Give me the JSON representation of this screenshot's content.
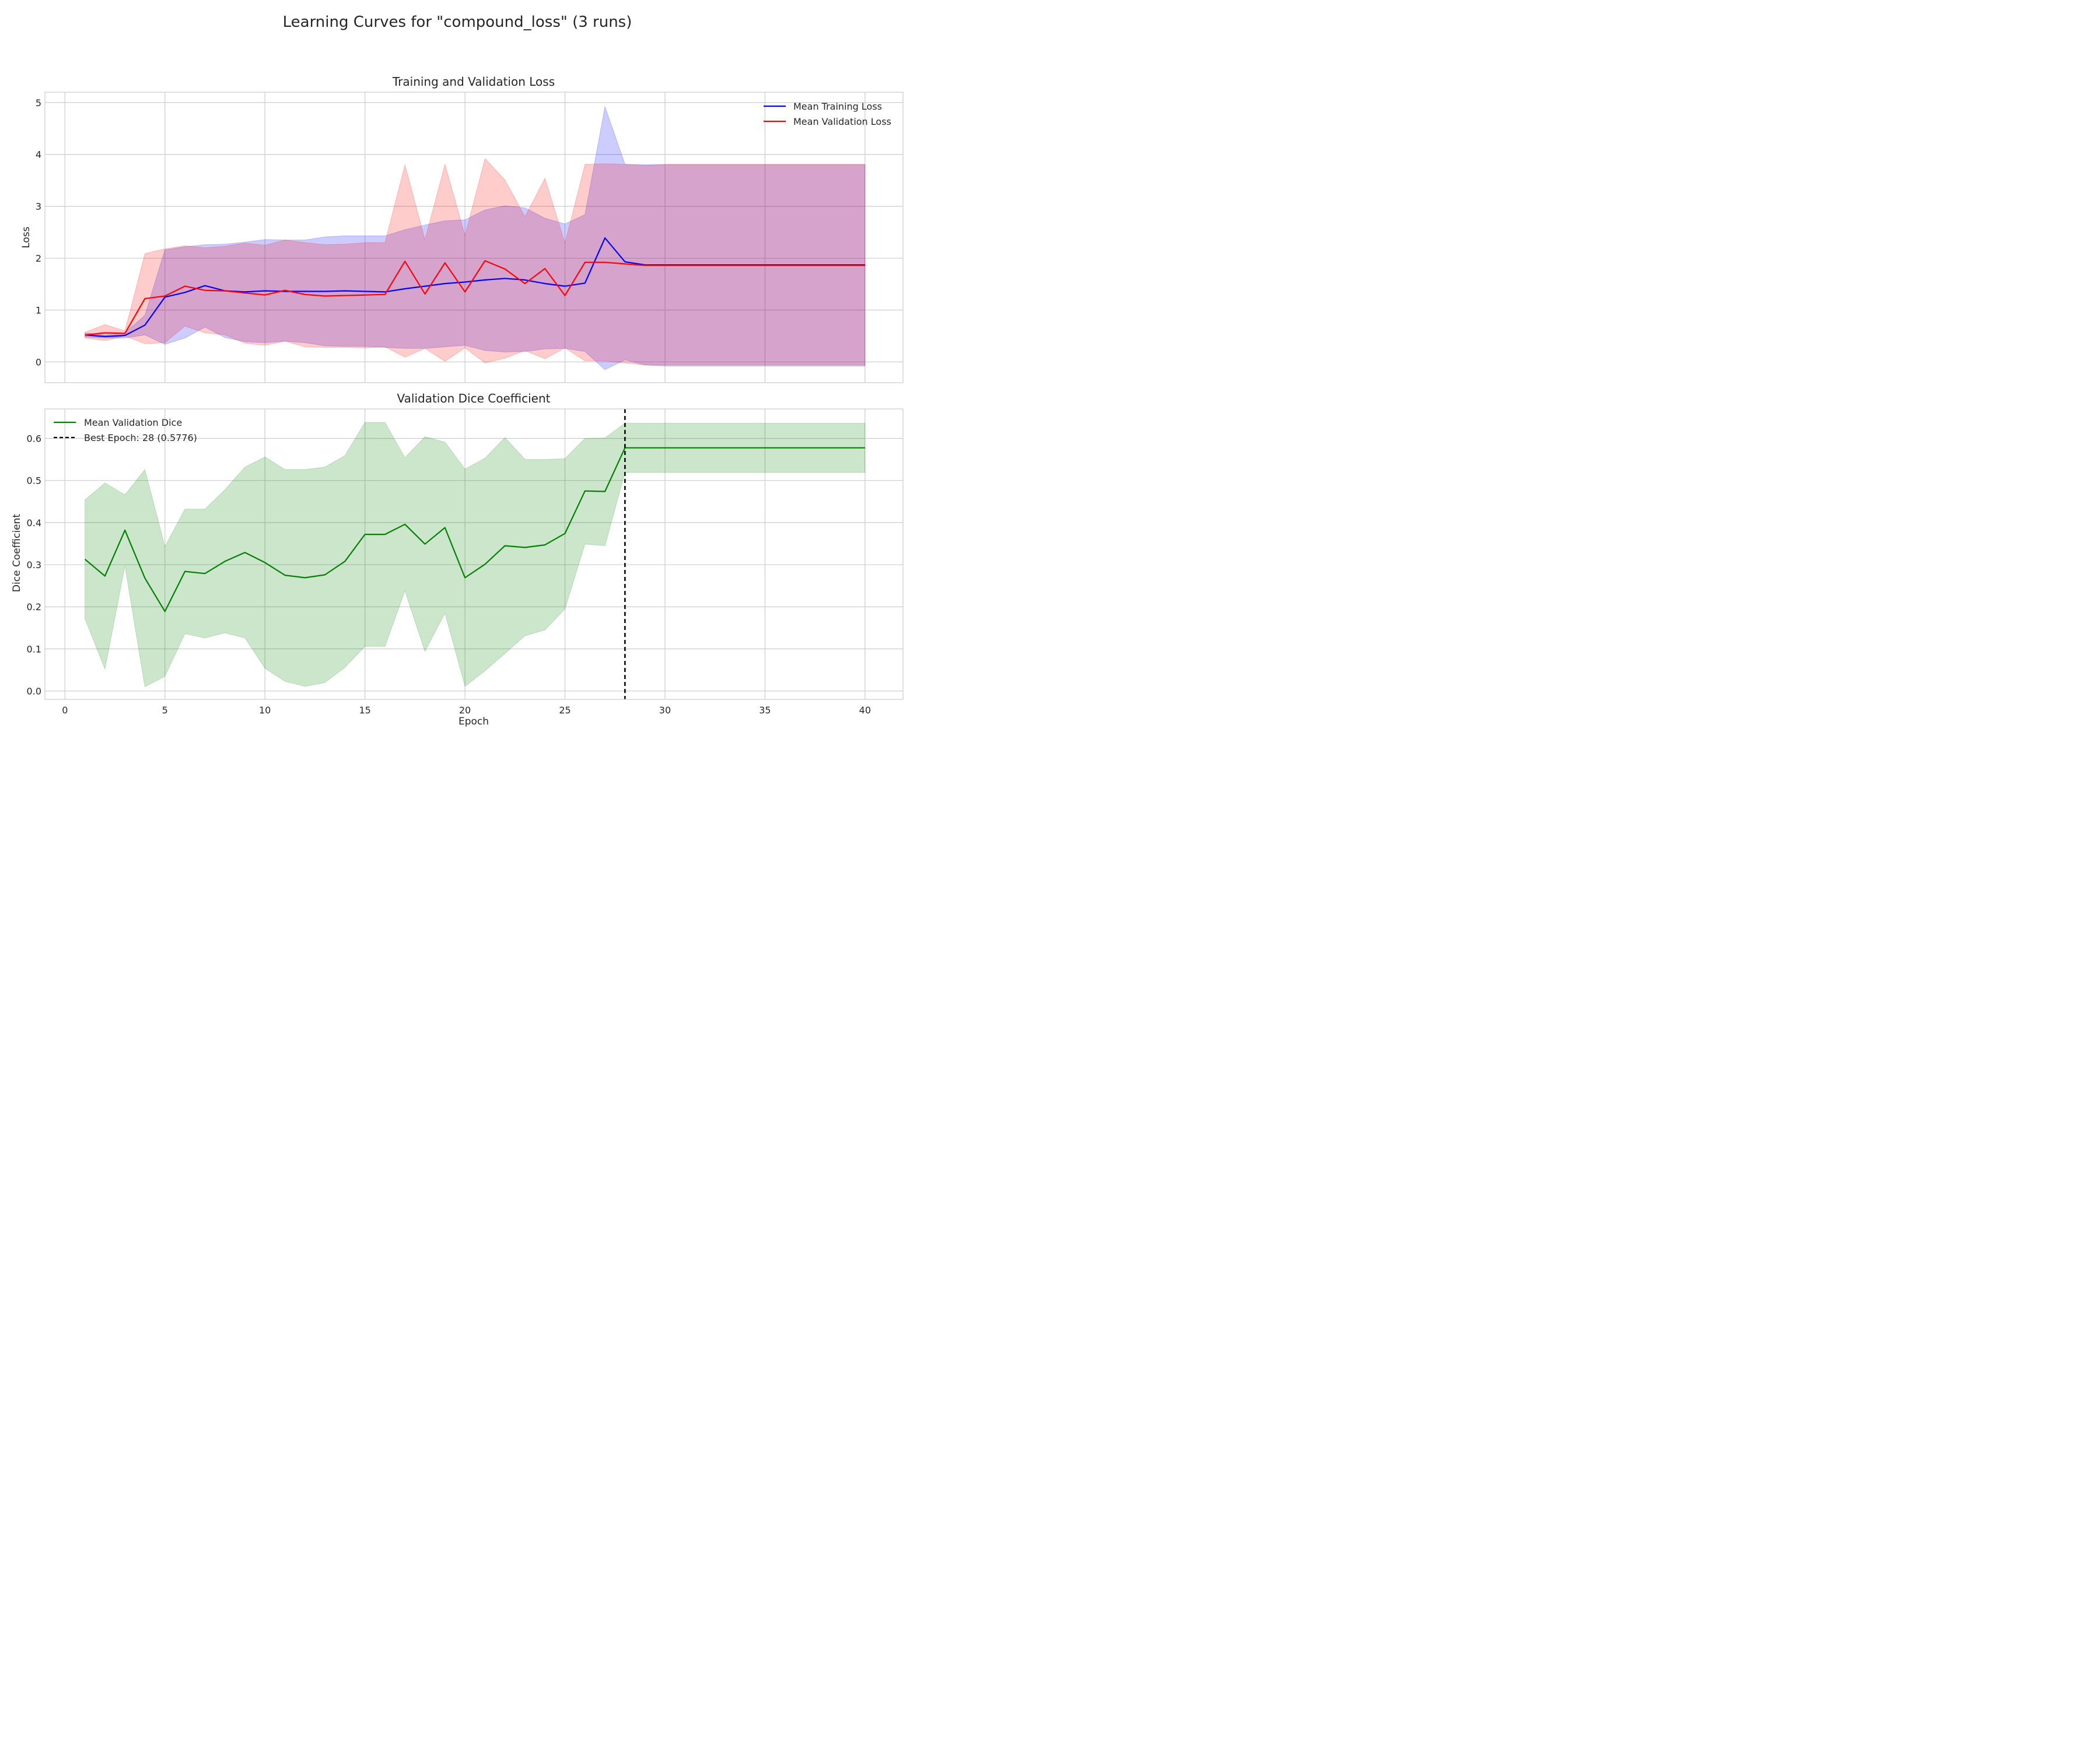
{
  "figure": {
    "suptitle": "Learning Curves for \"compound_loss\" (3 runs)"
  },
  "chart_data": [
    {
      "type": "line",
      "title": "Training and Validation Loss",
      "xlabel": "",
      "ylabel": "Loss",
      "xlim": [
        -1,
        41.9
      ],
      "ylim": [
        -0.4,
        5.2
      ],
      "xticks": [
        0,
        5,
        10,
        15,
        20,
        25,
        30,
        35,
        40
      ],
      "xtick_labels_shown": false,
      "yticks": [
        0,
        1,
        2,
        3,
        4,
        5
      ],
      "grid": true,
      "legend_position": "upper right",
      "x": [
        1,
        2,
        3,
        4,
        5,
        6,
        7,
        8,
        9,
        10,
        11,
        12,
        13,
        14,
        15,
        16,
        17,
        18,
        19,
        20,
        21,
        22,
        23,
        24,
        25,
        26,
        27,
        28,
        29,
        30,
        31,
        32,
        33,
        34,
        35,
        36,
        37,
        38,
        39,
        40
      ],
      "series": [
        {
          "name": "Mean Training Loss",
          "color": "#0000ff",
          "band_color": "#0000ff",
          "values": [
            0.52,
            0.49,
            0.51,
            0.71,
            1.25,
            1.34,
            1.47,
            1.37,
            1.35,
            1.37,
            1.36,
            1.36,
            1.36,
            1.37,
            1.36,
            1.35,
            1.41,
            1.46,
            1.51,
            1.54,
            1.58,
            1.61,
            1.58,
            1.51,
            1.46,
            1.52,
            2.39,
            1.93,
            1.87,
            1.87,
            1.87,
            1.87,
            1.87,
            1.87,
            1.87,
            1.87,
            1.87,
            1.87,
            1.87,
            1.87
          ],
          "band_lower": [
            0.48,
            0.46,
            0.46,
            0.52,
            0.34,
            0.46,
            0.67,
            0.47,
            0.39,
            0.37,
            0.4,
            0.37,
            0.31,
            0.3,
            0.3,
            0.28,
            0.26,
            0.26,
            0.29,
            0.32,
            0.22,
            0.19,
            0.2,
            0.25,
            0.26,
            0.2,
            -0.15,
            0.04,
            -0.06,
            -0.08,
            -0.08,
            -0.08,
            -0.08,
            -0.08,
            -0.08,
            -0.08,
            -0.08,
            -0.08,
            -0.08,
            -0.08
          ],
          "band_upper": [
            0.56,
            0.52,
            0.56,
            0.9,
            2.16,
            2.22,
            2.26,
            2.27,
            2.31,
            2.36,
            2.35,
            2.35,
            2.41,
            2.43,
            2.43,
            2.43,
            2.55,
            2.64,
            2.72,
            2.74,
            2.93,
            3.01,
            2.97,
            2.77,
            2.66,
            2.84,
            4.92,
            3.81,
            3.8,
            3.81,
            3.81,
            3.81,
            3.81,
            3.81,
            3.81,
            3.81,
            3.81,
            3.81,
            3.81,
            3.81
          ]
        },
        {
          "name": "Mean Validation Loss",
          "color": "#ff0000",
          "band_color": "#ff0000",
          "values": [
            0.52,
            0.56,
            0.55,
            1.22,
            1.27,
            1.46,
            1.38,
            1.37,
            1.33,
            1.29,
            1.38,
            1.3,
            1.27,
            1.28,
            1.29,
            1.3,
            1.94,
            1.31,
            1.91,
            1.35,
            1.95,
            1.79,
            1.51,
            1.8,
            1.28,
            1.92,
            1.92,
            1.89,
            1.86,
            1.86,
            1.86,
            1.86,
            1.86,
            1.86,
            1.86,
            1.86,
            1.86,
            1.86,
            1.86,
            1.86
          ],
          "band_lower": [
            0.46,
            0.41,
            0.5,
            0.35,
            0.37,
            0.69,
            0.56,
            0.52,
            0.36,
            0.32,
            0.4,
            0.29,
            0.28,
            0.28,
            0.27,
            0.29,
            0.09,
            0.26,
            0.01,
            0.27,
            -0.02,
            0.07,
            0.22,
            0.06,
            0.27,
            0.02,
            0.02,
            -0.02,
            -0.06,
            -0.06,
            -0.06,
            -0.06,
            -0.06,
            -0.06,
            -0.06,
            -0.06,
            -0.06,
            -0.06,
            -0.06,
            -0.06
          ],
          "band_upper": [
            0.57,
            0.72,
            0.6,
            2.09,
            2.18,
            2.24,
            2.2,
            2.23,
            2.29,
            2.25,
            2.35,
            2.3,
            2.26,
            2.27,
            2.3,
            2.3,
            3.8,
            2.36,
            3.81,
            2.44,
            3.92,
            3.51,
            2.8,
            3.54,
            2.29,
            3.81,
            3.82,
            3.81,
            3.79,
            3.8,
            3.8,
            3.8,
            3.8,
            3.8,
            3.8,
            3.8,
            3.8,
            3.8,
            3.8,
            3.8
          ]
        }
      ]
    },
    {
      "type": "line",
      "title": "Validation Dice Coefficient",
      "xlabel": "Epoch",
      "ylabel": "Dice Coefficient",
      "xlim": [
        -1,
        41.9
      ],
      "ylim": [
        -0.02,
        0.67
      ],
      "xticks": [
        0,
        5,
        10,
        15,
        20,
        25,
        30,
        35,
        40
      ],
      "yticks": [
        0.0,
        0.1,
        0.2,
        0.3,
        0.4,
        0.5,
        0.6
      ],
      "grid": true,
      "legend_position": "upper left",
      "x": [
        1,
        2,
        3,
        4,
        5,
        6,
        7,
        8,
        9,
        10,
        11,
        12,
        13,
        14,
        15,
        16,
        17,
        18,
        19,
        20,
        21,
        22,
        23,
        24,
        25,
        26,
        27,
        28,
        29,
        30,
        31,
        32,
        33,
        34,
        35,
        36,
        37,
        38,
        39,
        40
      ],
      "series": [
        {
          "name": "Mean Validation Dice",
          "color": "#008000",
          "band_color": "#008000",
          "values": [
            0.313,
            0.273,
            0.382,
            0.268,
            0.189,
            0.284,
            0.279,
            0.308,
            0.329,
            0.305,
            0.275,
            0.269,
            0.276,
            0.308,
            0.372,
            0.372,
            0.396,
            0.349,
            0.388,
            0.269,
            0.301,
            0.345,
            0.341,
            0.347,
            0.374,
            0.475,
            0.474,
            0.5776,
            0.5776,
            0.5776,
            0.5776,
            0.5776,
            0.5776,
            0.5776,
            0.5776,
            0.5776,
            0.5776,
            0.5776,
            0.5776,
            0.5776
          ],
          "band_lower": [
            0.172,
            0.052,
            0.297,
            0.01,
            0.035,
            0.136,
            0.126,
            0.138,
            0.126,
            0.054,
            0.023,
            0.011,
            0.02,
            0.056,
            0.106,
            0.106,
            0.238,
            0.094,
            0.185,
            0.011,
            0.048,
            0.089,
            0.131,
            0.145,
            0.195,
            0.349,
            0.345,
            0.519,
            0.519,
            0.519,
            0.519,
            0.519,
            0.519,
            0.519,
            0.519,
            0.519,
            0.519,
            0.519,
            0.519,
            0.519
          ],
          "band_upper": [
            0.454,
            0.494,
            0.466,
            0.526,
            0.343,
            0.432,
            0.432,
            0.478,
            0.532,
            0.556,
            0.526,
            0.526,
            0.532,
            0.559,
            0.638,
            0.638,
            0.554,
            0.604,
            0.591,
            0.527,
            0.553,
            0.602,
            0.55,
            0.55,
            0.552,
            0.6,
            0.601,
            0.636,
            0.636,
            0.636,
            0.636,
            0.636,
            0.636,
            0.636,
            0.636,
            0.636,
            0.636,
            0.636,
            0.636,
            0.636
          ]
        }
      ],
      "vline": {
        "x": 28,
        "label": "Best Epoch: 28 (0.5776)",
        "color": "#000000",
        "style": "dashed"
      }
    }
  ]
}
